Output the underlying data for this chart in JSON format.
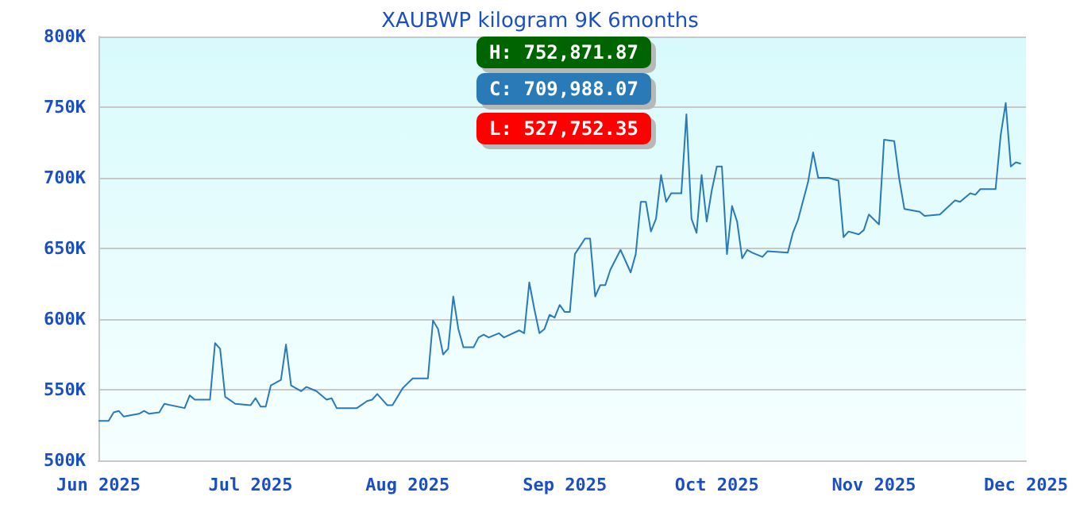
{
  "chart_data": {
    "type": "line",
    "title": "XAUBWP kilogram 9K 6months",
    "x": [
      "2025-06-01",
      "2025-06-03",
      "2025-06-04",
      "2025-06-05",
      "2025-06-06",
      "2025-06-09",
      "2025-06-10",
      "2025-06-11",
      "2025-06-13",
      "2025-06-14",
      "2025-06-18",
      "2025-06-19",
      "2025-06-20",
      "2025-06-23",
      "2025-06-24",
      "2025-06-25",
      "2025-06-26",
      "2025-06-28",
      "2025-07-01",
      "2025-07-02",
      "2025-07-03",
      "2025-07-04",
      "2025-07-05",
      "2025-07-07",
      "2025-07-08",
      "2025-07-09",
      "2025-07-11",
      "2025-07-12",
      "2025-07-14",
      "2025-07-16",
      "2025-07-17",
      "2025-07-18",
      "2025-07-22",
      "2025-07-24",
      "2025-07-25",
      "2025-07-26",
      "2025-07-28",
      "2025-07-29",
      "2025-07-31",
      "2025-08-02",
      "2025-08-05",
      "2025-08-06",
      "2025-08-07",
      "2025-08-08",
      "2025-08-09",
      "2025-08-10",
      "2025-08-11",
      "2025-08-12",
      "2025-08-14",
      "2025-08-15",
      "2025-08-16",
      "2025-08-17",
      "2025-08-19",
      "2025-08-20",
      "2025-08-23",
      "2025-08-24",
      "2025-08-25",
      "2025-08-26",
      "2025-08-27",
      "2025-08-28",
      "2025-08-29",
      "2025-08-30",
      "2025-08-31",
      "2025-09-01",
      "2025-09-02",
      "2025-09-03",
      "2025-09-05",
      "2025-09-06",
      "2025-09-07",
      "2025-09-08",
      "2025-09-09",
      "2025-09-10",
      "2025-09-12",
      "2025-09-14",
      "2025-09-15",
      "2025-09-16",
      "2025-09-17",
      "2025-09-18",
      "2025-09-19",
      "2025-09-20",
      "2025-09-21",
      "2025-09-22",
      "2025-09-24",
      "2025-09-25",
      "2025-09-26",
      "2025-09-27",
      "2025-09-28",
      "2025-09-29",
      "2025-09-30",
      "2025-10-01",
      "2025-10-02",
      "2025-10-03",
      "2025-10-04",
      "2025-10-05",
      "2025-10-06",
      "2025-10-07",
      "2025-10-08",
      "2025-10-10",
      "2025-10-11",
      "2025-10-15",
      "2025-10-16",
      "2025-10-17",
      "2025-10-19",
      "2025-10-20",
      "2025-10-21",
      "2025-10-23",
      "2025-10-25",
      "2025-10-26",
      "2025-10-27",
      "2025-10-29",
      "2025-10-30",
      "2025-10-31",
      "2025-11-02",
      "2025-11-03",
      "2025-11-05",
      "2025-11-06",
      "2025-11-07",
      "2025-11-10",
      "2025-11-11",
      "2025-11-14",
      "2025-11-17",
      "2025-11-18",
      "2025-11-20",
      "2025-11-21",
      "2025-11-22",
      "2025-11-25",
      "2025-11-26",
      "2025-11-27",
      "2025-11-28",
      "2025-11-29",
      "2025-11-30"
    ],
    "series": [
      {
        "color": "#2a7ab8",
        "values": [
          528000,
          528000,
          534000,
          535000,
          531000,
          533000,
          535000,
          533000,
          534000,
          540000,
          537000,
          546000,
          543000,
          543000,
          583000,
          579000,
          545000,
          540000,
          539000,
          544000,
          538000,
          538000,
          553000,
          557000,
          582000,
          553000,
          549000,
          552000,
          549000,
          543000,
          544000,
          537000,
          537000,
          542000,
          543000,
          547000,
          539000,
          539000,
          551000,
          558000,
          558000,
          599000,
          593000,
          575000,
          579000,
          616000,
          593000,
          580000,
          580000,
          587000,
          589000,
          587000,
          590000,
          587000,
          592000,
          590000,
          626000,
          607000,
          590000,
          593000,
          603000,
          601000,
          610000,
          605000,
          605000,
          646000,
          657000,
          657000,
          616000,
          624000,
          624000,
          635000,
          649000,
          633000,
          646000,
          683000,
          683000,
          662000,
          671000,
          702000,
          683000,
          689000,
          689000,
          745000,
          671000,
          661000,
          702000,
          669000,
          691000,
          708000,
          708000,
          646000,
          680000,
          669000,
          643000,
          649000,
          647000,
          644000,
          648000,
          647000,
          661000,
          670000,
          697000,
          718000,
          700000,
          700000,
          698000,
          658000,
          662000,
          660000,
          663000,
          674000,
          667000,
          727000,
          726000,
          699000,
          678000,
          676000,
          673000,
          674000,
          684000,
          683000,
          689000,
          688000,
          692000,
          692000,
          730000,
          753000,
          708000,
          711000,
          710000
        ]
      }
    ],
    "xlim": [
      "2025-06-01",
      "2025-12-01"
    ],
    "xticks": [
      {
        "value": "2025-06-01",
        "label": "Jun 2025"
      },
      {
        "value": "2025-07-01",
        "label": "Jul 2025"
      },
      {
        "value": "2025-08-01",
        "label": "Aug 2025"
      },
      {
        "value": "2025-09-01",
        "label": "Sep 2025"
      },
      {
        "value": "2025-10-01",
        "label": "Oct 2025"
      },
      {
        "value": "2025-11-01",
        "label": "Nov 2025"
      },
      {
        "value": "2025-12-01",
        "label": "Dec 2025"
      }
    ],
    "ylim": [
      500000,
      800000
    ],
    "yticks": [
      {
        "value": 500000,
        "label": "500K"
      },
      {
        "value": 550000,
        "label": "550K"
      },
      {
        "value": 600000,
        "label": "600K"
      },
      {
        "value": 650000,
        "label": "650K"
      },
      {
        "value": 700000,
        "label": "700K"
      },
      {
        "value": 750000,
        "label": "750K"
      },
      {
        "value": 800000,
        "label": "800K"
      }
    ],
    "annotations": [
      "H: 752,871.87",
      "C: 709,988.07",
      "L: 527,752.35"
    ],
    "grid": "y",
    "marker": "none",
    "line_style": "solid"
  }
}
